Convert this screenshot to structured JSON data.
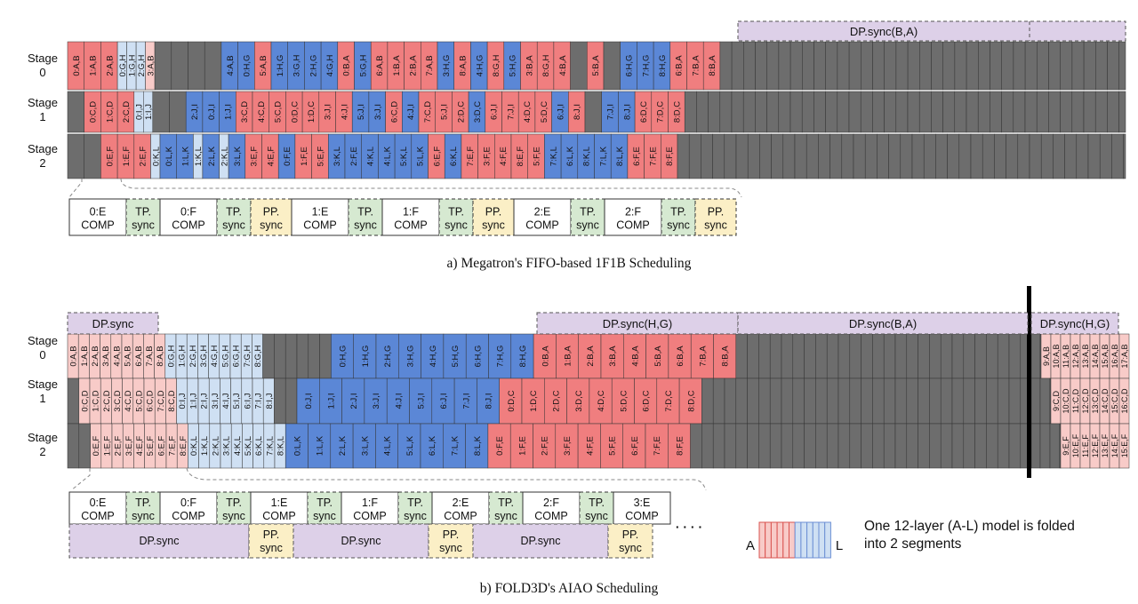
{
  "colors": {
    "red": "#f07e7f",
    "blue": "#5b87d6",
    "light_red": "#f8cbc8",
    "light_blue": "#cfe0f3",
    "gray": "#6d6d6d",
    "purple": "#ddd0e8",
    "green": "#d6e9d1",
    "yellow": "#fbefc6",
    "white": "#ffffff"
  },
  "a": {
    "caption": "a) Megatron's FIFO-based 1F1B Scheduling",
    "stage_labels": [
      [
        "Stage",
        "0"
      ],
      [
        "Stage",
        "1"
      ],
      [
        "Stage",
        "2"
      ]
    ],
    "rows": [
      [
        "r:0:A,B",
        "r:1:A,B",
        "r:2:A,B",
        "r:3:A,B",
        "x",
        "x",
        "x",
        "x",
        "x",
        "x",
        "x",
        "x",
        "x",
        "x",
        "x",
        "x",
        "x",
        "x",
        "x",
        "x",
        "x",
        "x",
        "x",
        "x",
        "x",
        "x",
        "x",
        "x",
        "x",
        "x",
        "x",
        "x",
        "x",
        "x",
        "x",
        "x",
        "x",
        "x",
        "x",
        "x",
        "x",
        "x",
        "x",
        "x",
        "x",
        "x",
        "x",
        "x",
        "x",
        "x",
        "x",
        "x",
        "x",
        "x",
        "x",
        "x",
        "x",
        "x",
        "x",
        "x",
        "x",
        "x",
        "x",
        "x",
        "x",
        "x",
        "x",
        "x",
        "x",
        "x",
        "x",
        "x",
        "x",
        "x",
        "x",
        "x",
        "x",
        "x",
        "x"
      ],
      [
        "x",
        "r:0:C,D",
        "r:1:C,D",
        "r:2:C,D",
        "r:3:C,D",
        "x",
        "x",
        "x",
        "x",
        "x",
        "x",
        "x",
        "x",
        "x",
        "x",
        "x",
        "x",
        "x",
        "x",
        "x",
        "x",
        "x",
        "x",
        "x",
        "x",
        "x",
        "x",
        "x",
        "x",
        "x",
        "x",
        "x",
        "x",
        "x",
        "x",
        "x",
        "x",
        "x",
        "x",
        "x",
        "x",
        "x",
        "x",
        "x",
        "x",
        "x",
        "x",
        "x",
        "x",
        "x",
        "x",
        "x",
        "x",
        "x",
        "x",
        "x",
        "x",
        "x",
        "x",
        "x",
        "x",
        "x",
        "x",
        "x",
        "x",
        "x",
        "x",
        "x",
        "x",
        "x",
        "x",
        "x",
        "x",
        "x",
        "x",
        "x",
        "x",
        "x",
        "x",
        "x"
      ],
      [
        "x",
        "x",
        "r:0:E,F",
        "r:1:E,F",
        "r:2:E,F",
        "x",
        "x",
        "x",
        "x",
        "x",
        "x",
        "x",
        "x",
        "x",
        "x",
        "x",
        "x",
        "x",
        "x",
        "x",
        "x",
        "x",
        "x",
        "x",
        "x",
        "x",
        "x",
        "x",
        "x",
        "x",
        "x",
        "x",
        "x",
        "x",
        "x",
        "x",
        "x",
        "x",
        "x",
        "x",
        "x",
        "x",
        "x",
        "x",
        "x",
        "x",
        "x",
        "x",
        "x",
        "x",
        "x",
        "x",
        "x",
        "x",
        "x",
        "x",
        "x",
        "x",
        "x",
        "x",
        "x",
        "x",
        "x",
        "x",
        "x",
        "x",
        "x",
        "x",
        "x",
        "x",
        "x",
        "x",
        "x",
        "x",
        "x",
        "x",
        "x",
        "x",
        "x",
        "x"
      ]
    ],
    "dp_label": "DP.sync(B,A)",
    "detail": [
      {
        "kind": "comp",
        "lines": [
          "0:E",
          "COMP"
        ]
      },
      {
        "kind": "tp",
        "lines": [
          "TP.",
          "sync"
        ]
      },
      {
        "kind": "comp",
        "lines": [
          "0:F",
          "COMP"
        ]
      },
      {
        "kind": "tp",
        "lines": [
          "TP.",
          "sync"
        ]
      },
      {
        "kind": "pp",
        "lines": [
          "PP.",
          "sync"
        ]
      },
      {
        "kind": "comp",
        "lines": [
          "1:E",
          "COMP"
        ]
      },
      {
        "kind": "tp",
        "lines": [
          "TP.",
          "sync"
        ]
      },
      {
        "kind": "comp",
        "lines": [
          "1:F",
          "COMP"
        ]
      },
      {
        "kind": "tp",
        "lines": [
          "TP.",
          "sync"
        ]
      },
      {
        "kind": "pp",
        "lines": [
          "PP.",
          "sync"
        ]
      },
      {
        "kind": "comp",
        "lines": [
          "2:E",
          "COMP"
        ]
      },
      {
        "kind": "tp",
        "lines": [
          "TP.",
          "sync"
        ]
      },
      {
        "kind": "comp",
        "lines": [
          "2:F",
          "COMP"
        ]
      },
      {
        "kind": "tp",
        "lines": [
          "TP.",
          "sync"
        ]
      },
      {
        "kind": "pp",
        "lines": [
          "PP.",
          "sync"
        ]
      }
    ]
  },
  "b": {
    "caption": "b) FOLD3D's AIAO Scheduling",
    "stage_labels": [
      [
        "Stage",
        "0"
      ],
      [
        "Stage",
        "1"
      ],
      [
        "Stage",
        "2"
      ]
    ],
    "dp_labels": [
      "DP.sync",
      "DP.sync(H,G)",
      "DP.sync(B,A)",
      "DP.sync(H,G)"
    ],
    "detail_top": [
      {
        "kind": "comp",
        "lines": [
          "0:E",
          "COMP"
        ]
      },
      {
        "kind": "tp",
        "lines": [
          "TP.",
          "sync"
        ]
      },
      {
        "kind": "comp",
        "lines": [
          "0:F",
          "COMP"
        ]
      },
      {
        "kind": "tp",
        "lines": [
          "TP.",
          "sync"
        ]
      },
      {
        "kind": "comp",
        "lines": [
          "1:E",
          "COMP"
        ]
      },
      {
        "kind": "tp",
        "lines": [
          "TP.",
          "sync"
        ]
      },
      {
        "kind": "comp",
        "lines": [
          "1:F",
          "COMP"
        ]
      },
      {
        "kind": "tp",
        "lines": [
          "TP.",
          "sync"
        ]
      },
      {
        "kind": "comp",
        "lines": [
          "2:E",
          "COMP"
        ]
      },
      {
        "kind": "tp",
        "lines": [
          "TP.",
          "sync"
        ]
      },
      {
        "kind": "comp",
        "lines": [
          "2:F",
          "COMP"
        ]
      },
      {
        "kind": "tp",
        "lines": [
          "TP.",
          "sync"
        ]
      },
      {
        "kind": "comp",
        "lines": [
          "3:E",
          "COMP"
        ]
      }
    ],
    "detail_bottom": [
      {
        "kind": "dp",
        "lines": [
          "DP.sync"
        ]
      },
      {
        "kind": "pp",
        "lines": [
          "PP.",
          "sync"
        ]
      },
      {
        "kind": "dp",
        "lines": [
          "DP.sync"
        ]
      },
      {
        "kind": "pp",
        "lines": [
          "PP.",
          "sync"
        ]
      },
      {
        "kind": "dp",
        "lines": [
          "DP.sync"
        ]
      },
      {
        "kind": "pp",
        "lines": [
          "PP.",
          "sync"
        ]
      }
    ],
    "ellipsis": "· · · ·"
  },
  "legend": {
    "left": "A",
    "right": "L",
    "text_line1": "One 12-layer (A-L) model is folded",
    "text_line2": "into 2 segments"
  }
}
